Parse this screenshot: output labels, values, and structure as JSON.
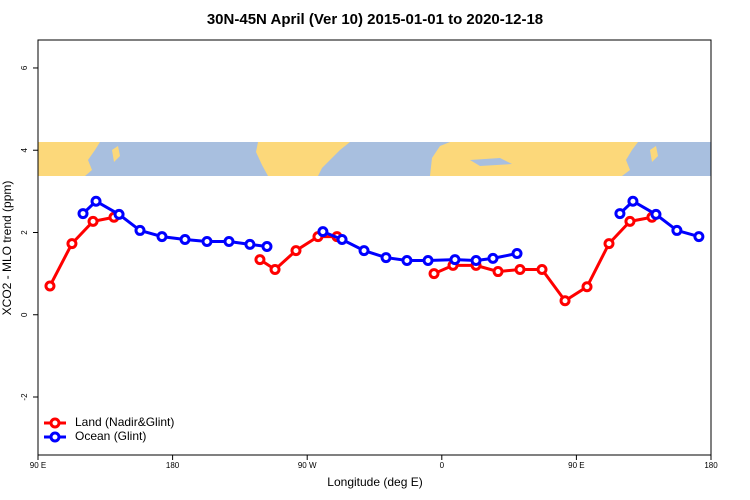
{
  "chart_data": {
    "type": "line",
    "title": "30N-45N April (Ver 10)   2015-01-01 to 2020-12-18",
    "x_label": "Longitude (deg E)",
    "y_label": "XCO2 - MLO trend (ppm)",
    "xlim": [
      90,
      540
    ],
    "ylim": [
      -3.41,
      6.68
    ],
    "xticks": [
      {
        "value": 90,
        "label": "90 E"
      },
      180,
      {
        "value": 270,
        "label": "90 W"
      },
      {
        "value": 360,
        "label": "0"
      },
      {
        "value": 450,
        "label": "90 E"
      },
      {
        "value": 540,
        "label": "180"
      }
    ],
    "yticks": [
      -2,
      0,
      2,
      4,
      6
    ],
    "legend": "bottom-left",
    "series": [
      {
        "name": "Land (Nadir&Glint)",
        "color": "#ff0000",
        "x": [
          98,
          112.7,
          126.8,
          140.8,
          null,
          238.4,
          248.5,
          262.5,
          277.2,
          289.9,
          null,
          354.8,
          367.5,
          382.9,
          397.6,
          412.3,
          427,
          442.4,
          457.1,
          471.8,
          485.8,
          500.5
        ],
        "values": [
          0.7,
          1.73,
          2.27,
          2.37,
          null,
          1.34,
          1.1,
          1.56,
          1.9,
          1.9,
          null,
          1.0,
          1.2,
          1.2,
          1.05,
          1.1,
          1.1,
          0.34,
          0.68,
          1.73,
          2.27,
          2.37
        ]
      },
      {
        "name": "Ocean (Glint)",
        "color": "#0000ff",
        "x": [
          120.1,
          128.8,
          144.2,
          158.2,
          172.9,
          188.3,
          203,
          217.7,
          231.7,
          243.1,
          null,
          280.5,
          293.3,
          308,
          322.7,
          336.7,
          350.8,
          368.8,
          382.9,
          394.2,
          410.3,
          null,
          479.1,
          487.8,
          503.2,
          517.2,
          531.9
        ],
        "values": [
          2.46,
          2.76,
          2.44,
          2.05,
          1.9,
          1.83,
          1.78,
          1.78,
          1.71,
          1.66,
          null,
          2.02,
          1.83,
          1.56,
          1.39,
          1.32,
          1.32,
          1.34,
          1.32,
          1.37,
          1.49,
          null,
          2.46,
          2.76,
          2.44,
          2.05,
          1.9
        ]
      }
    ]
  }
}
